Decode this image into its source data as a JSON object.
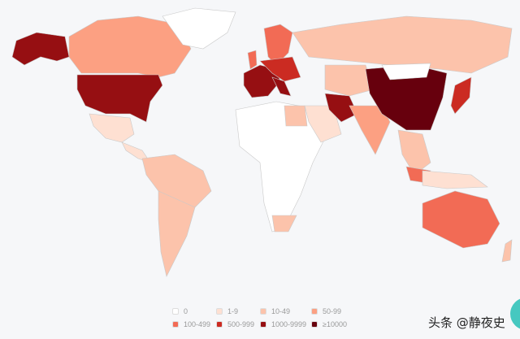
{
  "legend": [
    {
      "label": "0",
      "color": "#ffffff"
    },
    {
      "label": "1-9",
      "color": "#fee0d2"
    },
    {
      "label": "10-49",
      "color": "#fcc3ab"
    },
    {
      "label": "50-99",
      "color": "#fca082"
    },
    {
      "label": "100-499",
      "color": "#f26b55"
    },
    {
      "label": "500-999",
      "color": "#cb2b22"
    },
    {
      "label": "1000-9999",
      "color": "#960f12"
    },
    {
      "label": "≥10000",
      "color": "#67000d"
    }
  ],
  "watermark": "头条 @静夜史"
}
